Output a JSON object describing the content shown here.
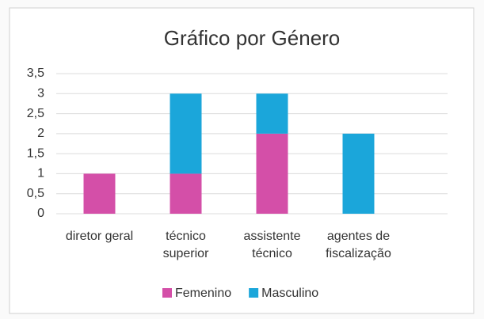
{
  "chart_data": {
    "type": "stacked_bar",
    "title": "Gráfico por Género",
    "categories": [
      "diretor geral",
      "técnico superior",
      "assistente técnico",
      "agentes de fiscalização"
    ],
    "series": [
      {
        "name": "Femenino",
        "color": "#d44fa8",
        "values": [
          1,
          1,
          2,
          0
        ]
      },
      {
        "name": "Masculino",
        "color": "#1ba6da",
        "values": [
          0,
          2,
          1,
          2
        ]
      }
    ],
    "ylim": [
      0,
      3.5
    ],
    "yticks": [
      0,
      {
        "value": 0.5,
        "label": "0,5"
      },
      1,
      {
        "value": 1.5,
        "label": "1,5"
      },
      2,
      {
        "value": 2.5,
        "label": "2,5"
      },
      3,
      {
        "value": 3.5,
        "label": "3,5"
      }
    ],
    "grid": true,
    "legend": "bottom"
  }
}
